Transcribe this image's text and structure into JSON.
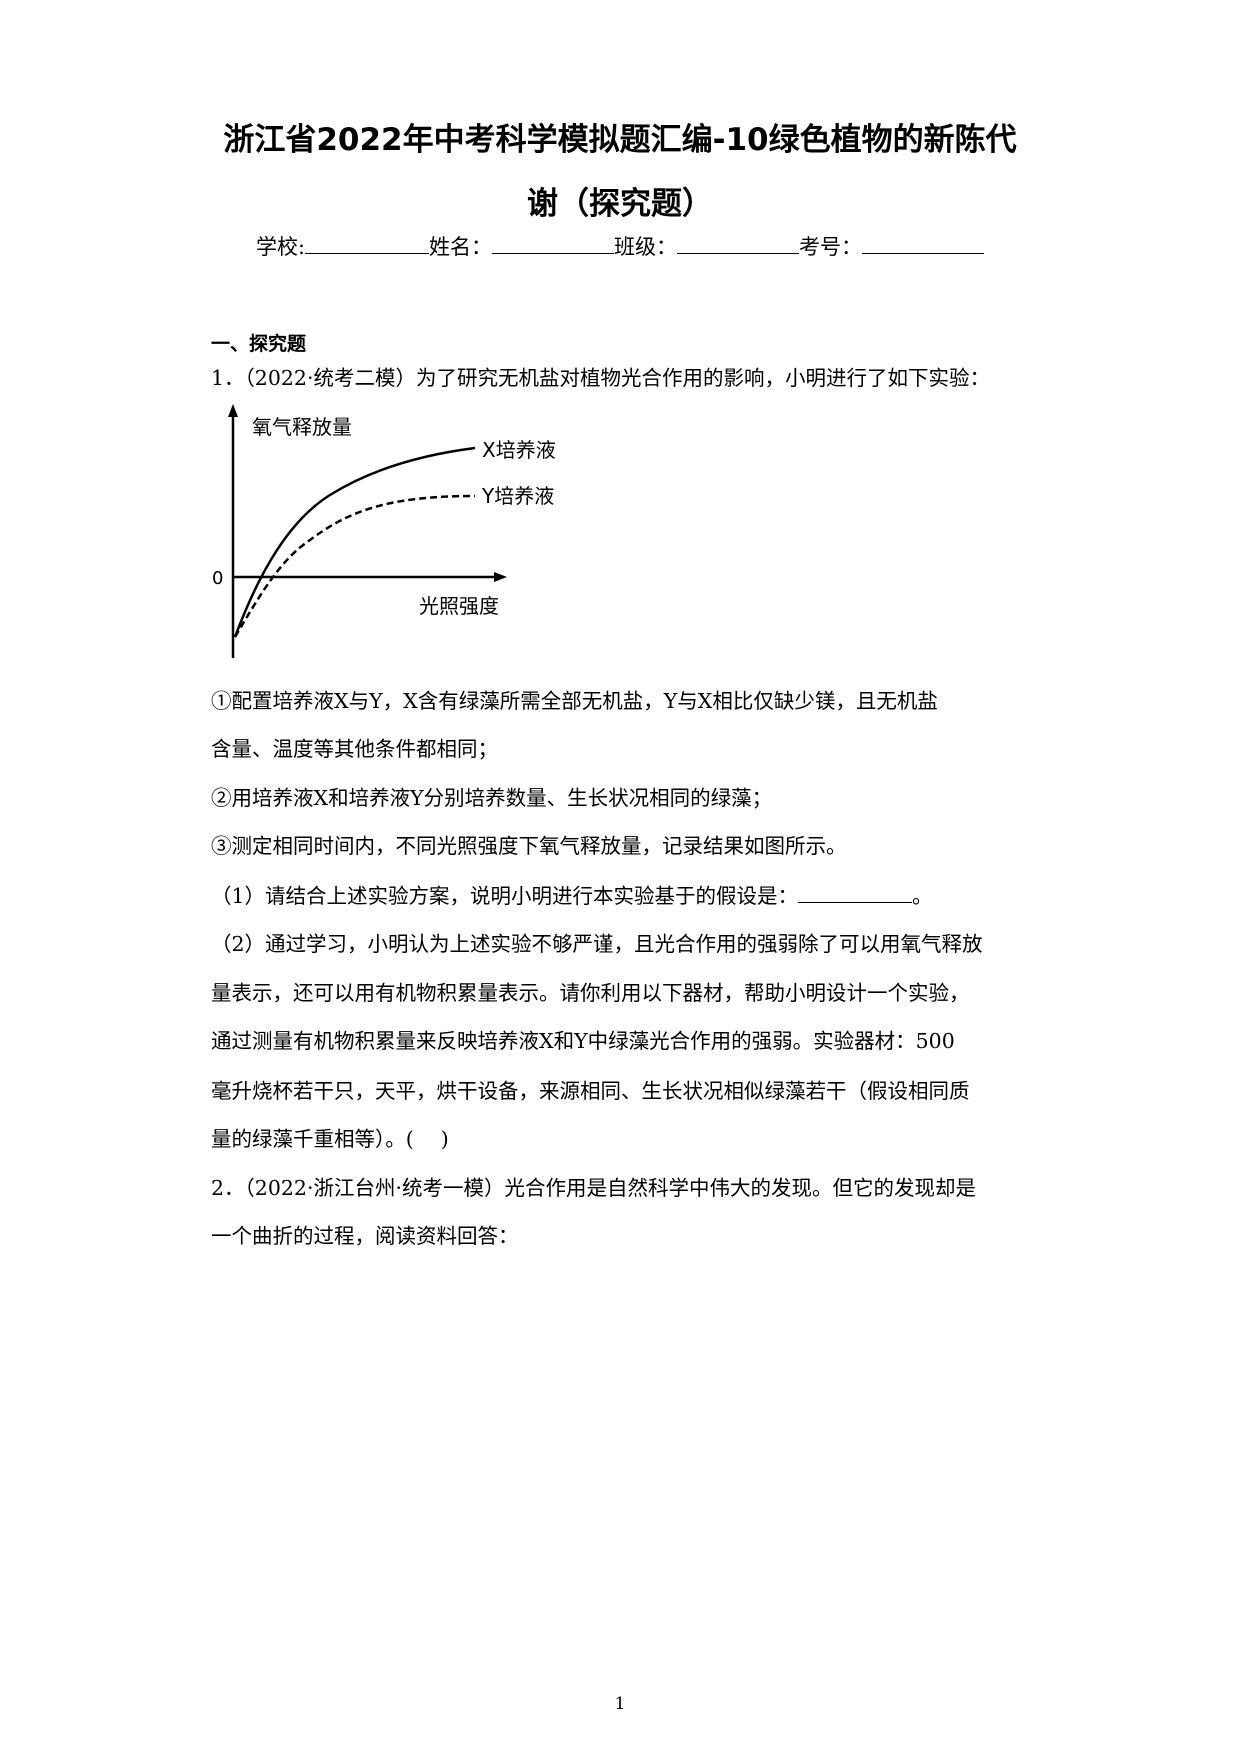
{
  "title": {
    "line1": "浙江省2022年中考科学模拟题汇编-10绿色植物的新陈代",
    "line2": "谢（探究题）"
  },
  "info": {
    "school": "学校:",
    "name": "姓名：",
    "class": "班级：",
    "id": "考号："
  },
  "section": "一、探究题",
  "q1": {
    "intro": "1．（2022·统考二模）为了研究无机盐对植物光合作用的影响，小明进行了如下实验：",
    "figure": {
      "y_label": "氧气释放量",
      "x_label": "光照强度",
      "origin": "0",
      "series_x": "X培养液",
      "series_y": "Y培养液"
    },
    "lines": [
      "①配置培养液X与Y，X含有绿藻所需全部无机盐，Y与X相比仅缺少镁，且无机盐",
      "含量、温度等其他条件都相同；",
      "②用培养液X和培养液Y分别培养数量、生长状况相同的绿藻；",
      "③测定相同时间内，不同光照强度下氧气释放量，记录结果如图所示。"
    ],
    "sub1": "（1）请结合上述实验方案，说明小明进行本实验基于的假设是：",
    "sub1_end": "。",
    "sub2": [
      "（2）通过学习，小明认为上述实验不够严谨，且光合作用的强弱除了可以用氧气释放",
      "量表示，还可以用有机物积累量表示。请你利用以下器材，帮助小明设计一个实验，",
      "通过测量有机物积累量来反映培养液X和Y中绿藻光合作用的强弱。实验器材：500",
      "毫升烧杯若干只，天平，烘干设备，来源相同、生长状况相似绿藻若干（假设相同质",
      "量的绿藻千重相等）。(　 )"
    ]
  },
  "q2": {
    "lines": [
      "2．（2022·浙江台州·统考一模）光合作用是自然科学中伟大的发现。但它的发现却是",
      "一个曲折的过程，阅读资料回答："
    ]
  },
  "page_number": "1"
}
